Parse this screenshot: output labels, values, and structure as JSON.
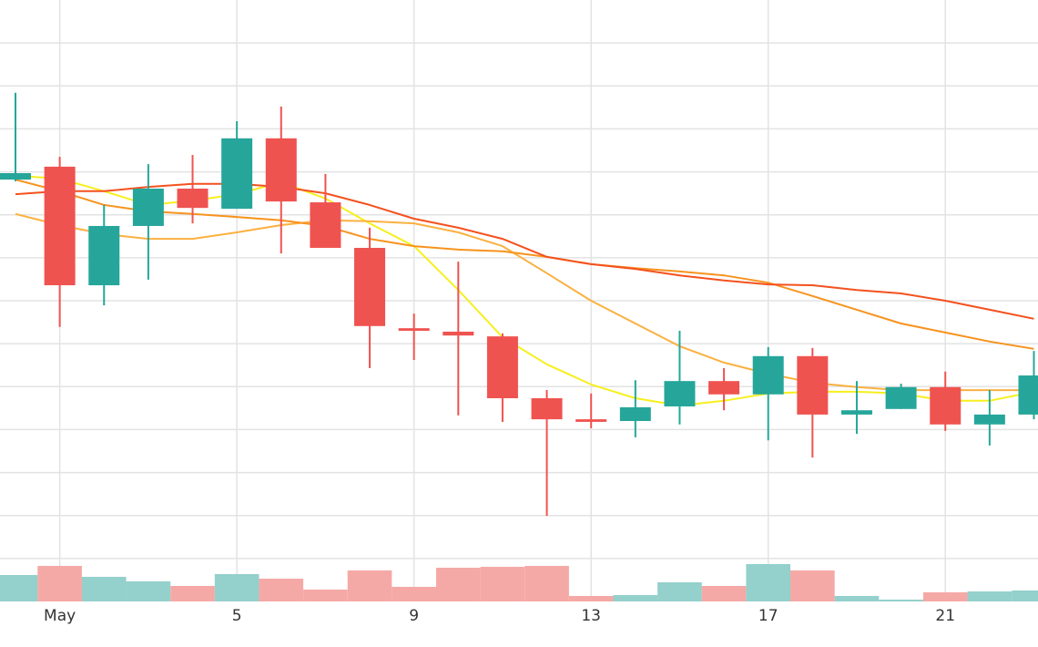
{
  "chart_data": {
    "type": "candlestick",
    "categories": [
      null,
      "May",
      null,
      null,
      null,
      "5",
      null,
      null,
      null,
      "9",
      null,
      null,
      null,
      "13",
      null,
      null,
      null,
      "17",
      null,
      null,
      null,
      "21",
      null,
      null
    ],
    "open": [
      9.82,
      10.12,
      7.36,
      8.74,
      9.61,
      9.14,
      10.78,
      9.29,
      8.23,
      6.36,
      6.28,
      6.17,
      4.73,
      4.24,
      4.2,
      4.54,
      5.13,
      4.82,
      5.71,
      4.35,
      4.48,
      4.99,
      4.12,
      4.35
    ],
    "high": [
      11.84,
      10.35,
      9.23,
      10.18,
      10.39,
      11.18,
      11.52,
      9.95,
      8.7,
      6.7,
      7.91,
      6.24,
      4.92,
      4.84,
      5.15,
      6.3,
      5.43,
      5.92,
      5.9,
      5.13,
      5.07,
      5.35,
      4.92,
      5.83
    ],
    "low": [
      9.78,
      6.39,
      6.89,
      7.49,
      8.8,
      9.14,
      8.1,
      8.23,
      5.43,
      5.62,
      4.33,
      4.18,
      1.99,
      4.03,
      3.82,
      4.12,
      4.45,
      3.75,
      3.35,
      3.9,
      4.48,
      3.97,
      3.63,
      4.24
    ],
    "close": [
      9.97,
      7.36,
      8.74,
      9.61,
      9.16,
      10.78,
      9.31,
      8.23,
      6.41,
      6.3,
      6.19,
      4.73,
      4.24,
      4.18,
      4.52,
      5.13,
      4.82,
      5.71,
      4.35,
      4.45,
      4.99,
      4.12,
      4.35,
      5.26
    ],
    "up_color": "#26a69a",
    "down_color": "#ef5350",
    "ylim": [
      0,
      14
    ],
    "yticks": [
      1,
      2,
      3,
      4,
      5,
      6,
      7,
      8,
      9,
      10,
      11,
      12,
      13
    ],
    "grid": true,
    "volume": {
      "values": [
        29,
        39,
        27,
        22,
        17,
        30,
        25,
        13,
        34,
        16,
        37,
        38,
        39,
        6,
        7,
        21,
        17,
        41,
        34,
        6,
        2,
        10,
        11,
        12
      ],
      "up_color": "#94d0cc",
      "down_color": "#f5a9a6",
      "lim": [
        0,
        100
      ]
    },
    "series": [
      {
        "color": "#f7ef1e",
        "values": [
          9.91,
          9.84,
          9.55,
          9.23,
          9.33,
          9.48,
          9.76,
          9.38,
          8.8,
          8.27,
          7.25,
          6.15,
          5.52,
          5.05,
          4.73,
          4.56,
          4.67,
          4.84,
          4.88,
          4.88,
          4.84,
          4.67,
          4.67,
          4.88
        ]
      },
      {
        "color": "#fbb040",
        "values": [
          9.02,
          8.76,
          8.55,
          8.44,
          8.44,
          8.59,
          8.76,
          8.87,
          8.85,
          8.8,
          8.59,
          8.27,
          7.64,
          7.0,
          6.47,
          5.94,
          5.56,
          5.3,
          5.09,
          4.99,
          4.92,
          4.92,
          4.92,
          4.92
        ]
      },
      {
        "color": "#f7931e",
        "values": [
          9.82,
          9.55,
          9.23,
          9.08,
          9.02,
          8.95,
          8.87,
          8.74,
          8.44,
          8.27,
          8.19,
          8.15,
          8.02,
          7.85,
          7.76,
          7.68,
          7.59,
          7.42,
          7.11,
          6.79,
          6.47,
          6.26,
          6.05,
          5.88
        ]
      },
      {
        "color": "#f4511e",
        "values": [
          9.48,
          9.55,
          9.55,
          9.65,
          9.72,
          9.72,
          9.65,
          9.5,
          9.23,
          8.91,
          8.7,
          8.44,
          8.02,
          7.85,
          7.74,
          7.59,
          7.47,
          7.38,
          7.36,
          7.25,
          7.17,
          7.0,
          6.79,
          6.58
        ]
      }
    ]
  }
}
